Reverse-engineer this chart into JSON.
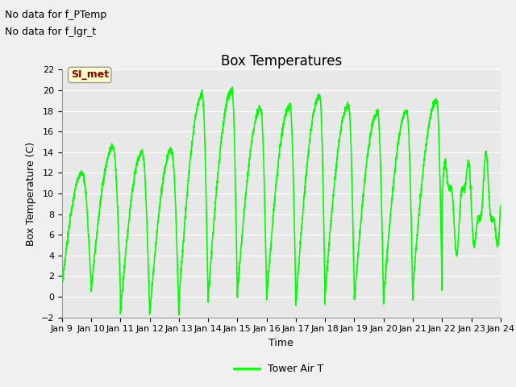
{
  "title": "Box Temperatures",
  "ylabel": "Box Temperature (C)",
  "xlabel": "Time",
  "ylim": [
    -2,
    22
  ],
  "yticks": [
    -2,
    0,
    2,
    4,
    6,
    8,
    10,
    12,
    14,
    16,
    18,
    20,
    22
  ],
  "xtick_labels": [
    "Jan 9",
    "Jan 10",
    "Jan 11",
    "Jan 12",
    "Jan 13",
    "Jan 14",
    "Jan 15",
    "Jan 16",
    "Jan 17",
    "Jan 18",
    "Jan 19",
    "Jan 20",
    "Jan 21",
    "Jan 22",
    "Jan 23",
    "Jan 24"
  ],
  "line_color": "#00FF00",
  "line_width": 1.2,
  "fig_bg_color": "#F0F0F0",
  "plot_bg_color": "#E8E8E8",
  "grid_color": "#FFFFFF",
  "no_data_text1": "No data for f_PTemp",
  "no_data_text2": "No data for f_lgr_t",
  "si_met_label": "SI_met",
  "legend_label": "Tower Air T",
  "title_fontsize": 12,
  "axis_label_fontsize": 9,
  "tick_fontsize": 8,
  "annotation_fontsize": 9
}
